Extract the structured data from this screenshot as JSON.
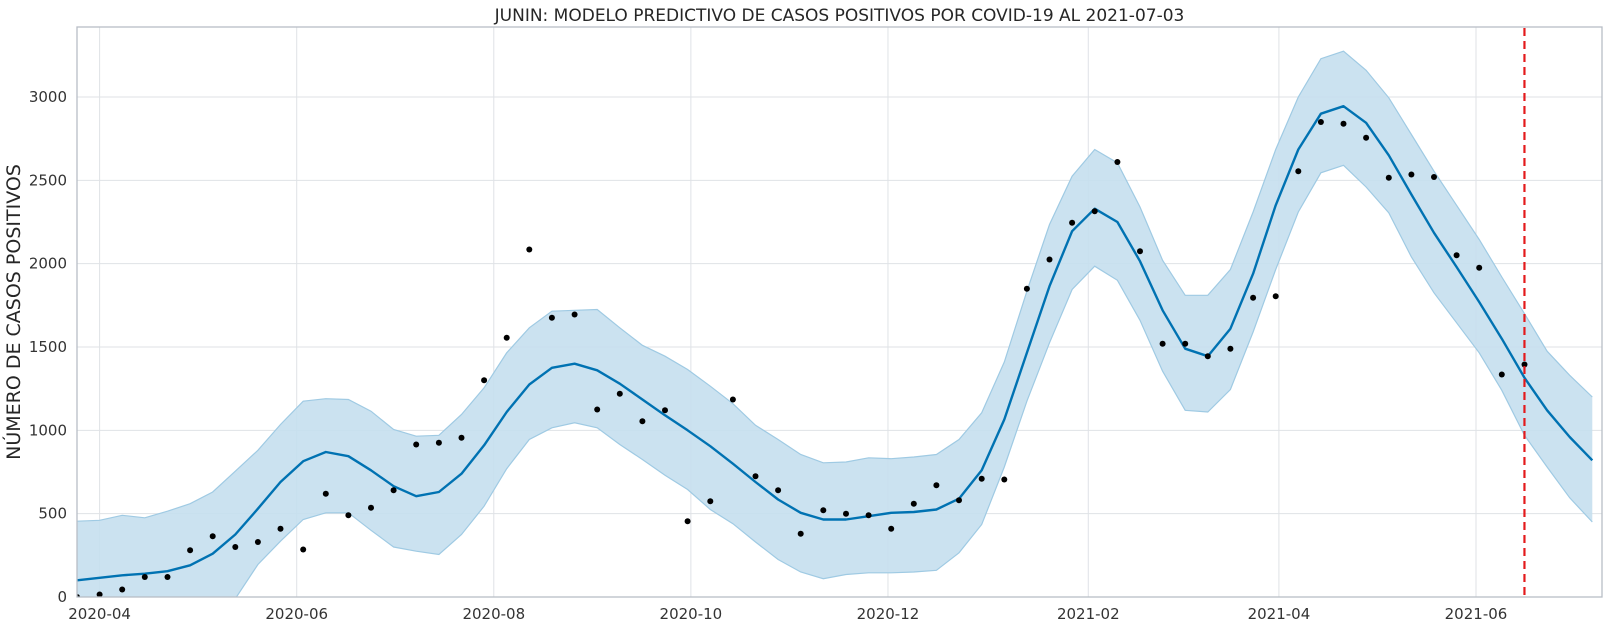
{
  "chart_data": {
    "type": "line",
    "title": "JUNIN: MODELO PREDICTIVO DE CASOS POSITIVOS POR COVID-19 AL 2021-07-03",
    "xlabel": "",
    "ylabel": "NÚMERO DE CASOS POSITIVOS",
    "x_axis": "date",
    "xlim": [
      "2020-03-25",
      "2021-07-10"
    ],
    "ylim": [
      0,
      3420
    ],
    "x_ticks": [
      "2020-04",
      "2020-06",
      "2020-08",
      "2020-10",
      "2020-12",
      "2021-02",
      "2021-04",
      "2021-06"
    ],
    "y_ticks": [
      0,
      500,
      1000,
      1500,
      2000,
      2500,
      3000
    ],
    "grid": true,
    "legend": "none",
    "cutoff_date": "2021-06-16",
    "colors": {
      "forecast": "#0072b2",
      "band": "#c5dfee",
      "band_edge": "#9fcae3",
      "observed": "#000000",
      "cutoff": "#e31a1c",
      "grid": "#dfe2e6",
      "frame": "#b8bec6"
    },
    "series": [
      {
        "name": "",
        "kind": "observed",
        "x": [
          "2020-03-25",
          "2020-04-01",
          "2020-04-08",
          "2020-04-15",
          "2020-04-22",
          "2020-04-29",
          "2020-05-06",
          "2020-05-13",
          "2020-05-20",
          "2020-05-27",
          "2020-06-03",
          "2020-06-10",
          "2020-06-17",
          "2020-06-24",
          "2020-07-01",
          "2020-07-08",
          "2020-07-15",
          "2020-07-22",
          "2020-07-29",
          "2020-08-05",
          "2020-08-12",
          "2020-08-19",
          "2020-08-26",
          "2020-09-02",
          "2020-09-09",
          "2020-09-16",
          "2020-09-23",
          "2020-09-30",
          "2020-10-07",
          "2020-10-14",
          "2020-10-21",
          "2020-10-28",
          "2020-11-04",
          "2020-11-11",
          "2020-11-18",
          "2020-11-25",
          "2020-12-02",
          "2020-12-09",
          "2020-12-16",
          "2020-12-23",
          "2020-12-30",
          "2021-01-06",
          "2021-01-13",
          "2021-01-20",
          "2021-01-27",
          "2021-02-03",
          "2021-02-10",
          "2021-02-17",
          "2021-02-24",
          "2021-03-03",
          "2021-03-10",
          "2021-03-17",
          "2021-03-24",
          "2021-03-31",
          "2021-04-07",
          "2021-04-14",
          "2021-04-21",
          "2021-04-28",
          "2021-05-05",
          "2021-05-12",
          "2021-05-19",
          "2021-05-26",
          "2021-06-02",
          "2021-06-09",
          "2021-06-16"
        ],
        "y": [
          0,
          15,
          45,
          120,
          120,
          280,
          365,
          300,
          330,
          410,
          285,
          620,
          490,
          535,
          640,
          915,
          925,
          955,
          1300,
          1555,
          2085,
          1675,
          1695,
          1125,
          1220,
          1055,
          1120,
          455,
          575,
          1185,
          725,
          640,
          380,
          520,
          500,
          490,
          410,
          560,
          670,
          580,
          710,
          705,
          1850,
          2025,
          2245,
          2315,
          2610,
          2075,
          1520,
          1520,
          1445,
          1490,
          1795,
          1805,
          2555,
          2850,
          2840,
          2755,
          2515,
          2535,
          2520,
          2050,
          1975,
          1335,
          1395
        ]
      },
      {
        "name": "",
        "kind": "forecast",
        "x": [
          "2020-03-25",
          "2020-04-01",
          "2020-04-08",
          "2020-04-15",
          "2020-04-22",
          "2020-04-29",
          "2020-05-06",
          "2020-05-13",
          "2020-05-20",
          "2020-05-27",
          "2020-06-03",
          "2020-06-10",
          "2020-06-17",
          "2020-06-24",
          "2020-07-01",
          "2020-07-08",
          "2020-07-15",
          "2020-07-22",
          "2020-07-29",
          "2020-08-05",
          "2020-08-12",
          "2020-08-19",
          "2020-08-26",
          "2020-09-02",
          "2020-09-09",
          "2020-09-16",
          "2020-09-23",
          "2020-09-30",
          "2020-10-07",
          "2020-10-14",
          "2020-10-21",
          "2020-10-28",
          "2020-11-04",
          "2020-11-11",
          "2020-11-18",
          "2020-11-25",
          "2020-12-02",
          "2020-12-09",
          "2020-12-16",
          "2020-12-23",
          "2020-12-30",
          "2021-01-06",
          "2021-01-13",
          "2021-01-20",
          "2021-01-27",
          "2021-02-03",
          "2021-02-10",
          "2021-02-17",
          "2021-02-24",
          "2021-03-03",
          "2021-03-10",
          "2021-03-17",
          "2021-03-24",
          "2021-03-31",
          "2021-04-07",
          "2021-04-14",
          "2021-04-21",
          "2021-04-28",
          "2021-05-05",
          "2021-05-12",
          "2021-05-19",
          "2021-05-26",
          "2021-06-02",
          "2021-06-09",
          "2021-06-16",
          "2021-06-23",
          "2021-06-30",
          "2021-07-07"
        ],
        "y": [
          100,
          115,
          130,
          140,
          155,
          190,
          260,
          375,
          530,
          690,
          815,
          870,
          845,
          760,
          665,
          605,
          630,
          740,
          910,
          1110,
          1275,
          1375,
          1400,
          1360,
          1280,
          1185,
          1090,
          1000,
          905,
          800,
          690,
          585,
          505,
          465,
          465,
          485,
          505,
          510,
          525,
          590,
          760,
          1065,
          1465,
          1865,
          2195,
          2330,
          2250,
          2015,
          1720,
          1490,
          1445,
          1610,
          1940,
          2350,
          2685,
          2900,
          2945,
          2845,
          2650,
          2415,
          2185,
          1980,
          1770,
          1550,
          1315,
          1120,
          960,
          820
        ],
        "lower": [
          -300,
          -290,
          -275,
          -270,
          -255,
          -210,
          -130,
          -10,
          195,
          335,
          465,
          505,
          505,
          400,
          300,
          275,
          255,
          375,
          545,
          770,
          945,
          1015,
          1045,
          1015,
          915,
          825,
          730,
          645,
          525,
          440,
          330,
          225,
          150,
          110,
          135,
          145,
          145,
          150,
          160,
          265,
          435,
          780,
          1175,
          1525,
          1845,
          1985,
          1900,
          1660,
          1355,
          1120,
          1110,
          1245,
          1590,
          1965,
          2310,
          2545,
          2590,
          2460,
          2305,
          2040,
          1825,
          1645,
          1465,
          1240,
          970,
          780,
          595,
          450
        ],
        "upper": [
          455,
          460,
          490,
          475,
          515,
          560,
          630,
          755,
          880,
          1035,
          1175,
          1190,
          1185,
          1115,
          1005,
          965,
          970,
          1095,
          1255,
          1465,
          1615,
          1715,
          1720,
          1725,
          1615,
          1510,
          1445,
          1365,
          1265,
          1160,
          1030,
          945,
          855,
          805,
          810,
          835,
          830,
          840,
          855,
          945,
          1105,
          1410,
          1835,
          2235,
          2525,
          2685,
          2605,
          2340,
          2020,
          1810,
          1810,
          1965,
          2310,
          2685,
          3000,
          3230,
          3275,
          3160,
          2995,
          2775,
          2555,
          2350,
          2145,
          1920,
          1700,
          1475,
          1330,
          1200
        ]
      }
    ]
  }
}
